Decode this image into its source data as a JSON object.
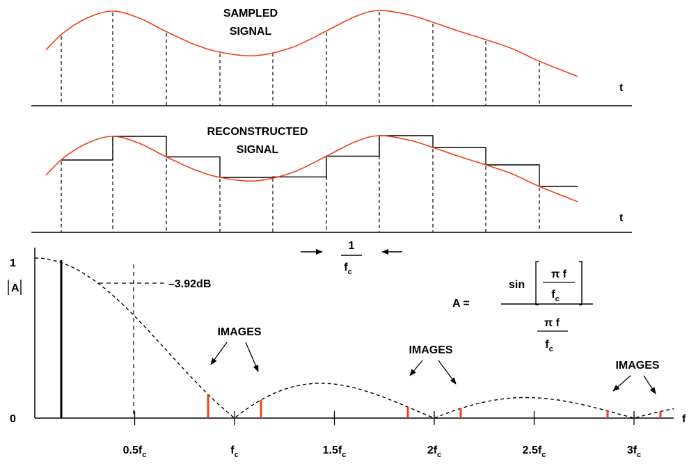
{
  "colors": {
    "signal": "#e8421c",
    "image_line": "#e8421c",
    "ink": "#000000"
  },
  "labels": {
    "sampled_line1": "SAMPLED",
    "sampled_line2": "SIGNAL",
    "reconstructed_line1": "RECONSTRUCTED",
    "reconstructed_line2": "SIGNAL",
    "t_axis_top": "t",
    "t_axis_mid": "t",
    "period_num": "1",
    "period_den_base": "f",
    "period_den_sub": "c",
    "y_one": "1",
    "y_zero": "0",
    "y_axis_label": "A",
    "f_axis": "f",
    "db_label": "–3.92dB",
    "images": [
      "IMAGES",
      "IMAGES",
      "IMAGES"
    ]
  },
  "formula": {
    "lhs": "A =",
    "sin": "sin",
    "pi_f": "π f",
    "f_base": "f",
    "f_sub": "c"
  },
  "freq_ticks": [
    {
      "base": "0.5f",
      "sub": "c"
    },
    {
      "base": "f",
      "sub": "c"
    },
    {
      "base": "1.5f",
      "sub": "c"
    },
    {
      "base": "2f",
      "sub": "c"
    },
    {
      "base": "2.5f",
      "sub": "c"
    },
    {
      "base": "3f",
      "sub": "c"
    }
  ]
}
